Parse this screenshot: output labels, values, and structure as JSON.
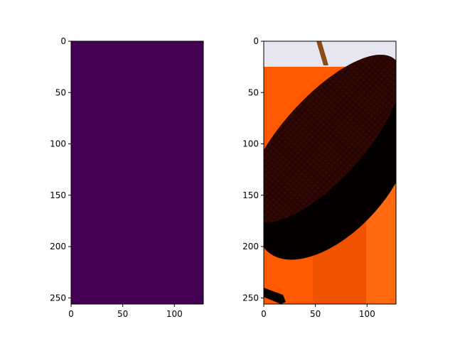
{
  "chart_data": [
    {
      "type": "heatmap",
      "title": "",
      "xlabel": "",
      "ylabel": "",
      "xlim": [
        0,
        128
      ],
      "ylim": [
        256,
        0
      ],
      "xticks": [
        0,
        50,
        100
      ],
      "yticks": [
        0,
        50,
        100,
        150,
        200,
        250
      ],
      "colormap": "viridis",
      "uniform_value_color": "#440154",
      "grid": false
    },
    {
      "type": "image",
      "title": "",
      "xlabel": "",
      "ylabel": "",
      "xlim": [
        0,
        128
      ],
      "ylim": [
        256,
        0
      ],
      "xticks": [
        0,
        50,
        100
      ],
      "yticks": [
        0,
        50,
        100,
        150,
        200,
        250
      ],
      "grid": false,
      "colors": {
        "floor_orange": "#ff5a00",
        "floor_shadow": "#e84f00",
        "wall_light": "#e6e6f0",
        "stick_brown": "#8a4b18",
        "object_dark": "#2a0603",
        "object_black": "#050000"
      }
    }
  ]
}
